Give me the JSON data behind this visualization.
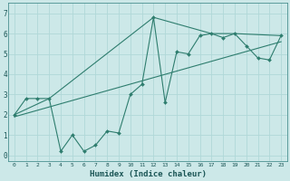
{
  "xlabel": "Humidex (Indice chaleur)",
  "xlim": [
    -0.5,
    23.5
  ],
  "ylim": [
    -0.3,
    7.5
  ],
  "xticks": [
    0,
    1,
    2,
    3,
    4,
    5,
    6,
    7,
    8,
    9,
    10,
    11,
    12,
    13,
    14,
    15,
    16,
    17,
    18,
    19,
    20,
    21,
    22,
    23
  ],
  "yticks": [
    0,
    1,
    2,
    3,
    4,
    5,
    6,
    7
  ],
  "bg_color": "#cce8e8",
  "grid_color": "#b0d8d8",
  "line_color": "#2e7d6e",
  "line1_x": [
    0,
    1,
    2,
    3,
    4,
    5,
    6,
    7,
    8,
    9,
    10,
    11,
    12,
    13,
    14,
    15,
    16,
    17,
    18,
    19,
    20,
    21,
    22,
    23
  ],
  "line1_y": [
    2.0,
    2.8,
    2.8,
    2.8,
    0.2,
    1.0,
    0.2,
    0.5,
    1.2,
    1.1,
    3.0,
    3.5,
    6.8,
    2.6,
    5.1,
    5.0,
    5.9,
    6.0,
    5.8,
    6.0,
    5.4,
    4.8,
    4.7,
    5.9
  ],
  "envelope_x": [
    0,
    3,
    12,
    17,
    19,
    23
  ],
  "envelope_y": [
    2.0,
    2.8,
    6.8,
    6.0,
    6.0,
    5.9
  ],
  "trend_x": [
    0,
    23
  ],
  "trend_y": [
    1.9,
    5.6
  ]
}
